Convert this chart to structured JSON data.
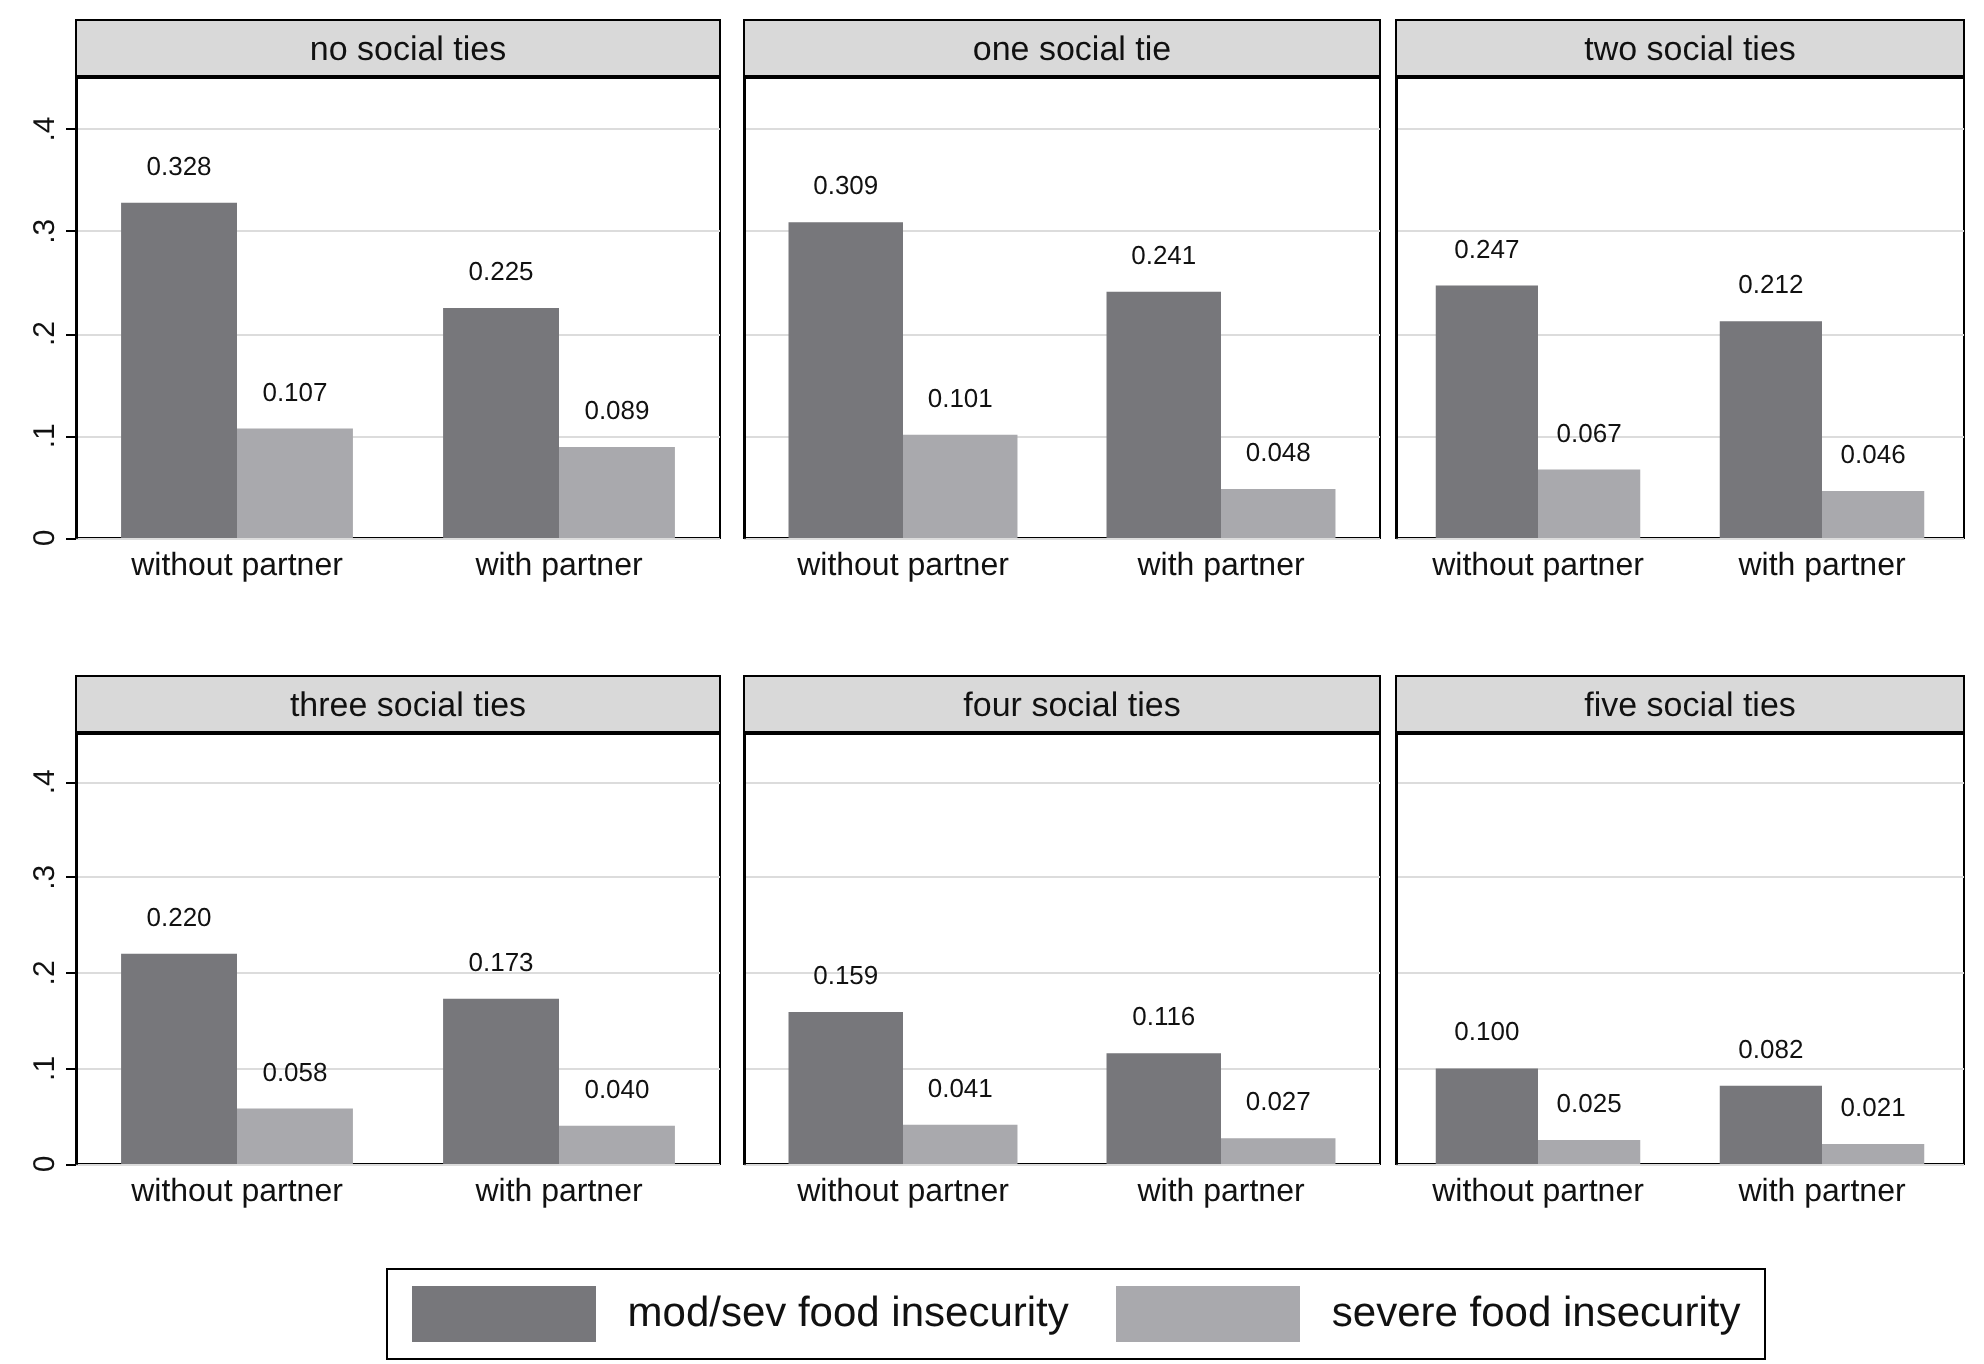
{
  "chart_data": [
    {
      "type": "bar",
      "title": "no social ties",
      "categories": [
        "without partner",
        "with partner"
      ],
      "ylim": [
        0,
        0.45
      ],
      "yticks": [
        0,
        {
          "value": 0.1,
          "label": ".1"
        },
        {
          "value": 0.2,
          "label": ".2"
        },
        {
          "value": 0.3,
          "label": ".3"
        },
        {
          "value": 0.4,
          "label": ".4"
        }
      ],
      "grid": "y",
      "legend": "bottom",
      "series": [
        {
          "name": "mod/sev food insecurity",
          "color": "#77777b",
          "values": [
            0.328,
            0.225
          ],
          "value_labels": [
            "0.328",
            "0.225"
          ]
        },
        {
          "name": "severe food insecurity",
          "color": "#a9a9ad",
          "values": [
            0.107,
            0.089
          ],
          "value_labels": [
            "0.107",
            "0.089"
          ]
        }
      ]
    },
    {
      "type": "bar",
      "title": "one social tie",
      "categories": [
        "without partner",
        "with partner"
      ],
      "ylim": [
        0,
        0.45
      ],
      "yticks": [
        0,
        0.1,
        0.2,
        0.3,
        0.4
      ],
      "grid": "y",
      "tick_labels": "x",
      "series": [
        {
          "color": "#77777b",
          "values": [
            0.309,
            0.241
          ],
          "value_labels": [
            "0.309",
            "0.241"
          ]
        },
        {
          "color": "#a9a9ad",
          "values": [
            0.101,
            0.048
          ],
          "value_labels": [
            "0.101",
            "0.048"
          ]
        }
      ]
    },
    {
      "type": "bar",
      "title": "two social ties",
      "categories": [
        "without partner",
        "with partner"
      ],
      "ylim": [
        0,
        0.45
      ],
      "yticks": [
        0,
        0.1,
        0.2,
        0.3,
        0.4
      ],
      "grid": "y",
      "tick_labels": "x",
      "series": [
        {
          "color": "#77777b",
          "values": [
            0.247,
            0.212
          ],
          "value_labels": [
            "0.247",
            "0.212"
          ]
        },
        {
          "color": "#a9a9ad",
          "values": [
            0.067,
            0.046
          ],
          "value_labels": [
            "0.067",
            "0.046"
          ]
        }
      ]
    },
    {
      "type": "bar",
      "title": "three social ties",
      "categories": [
        "without partner",
        "with partner"
      ],
      "ylim": [
        0,
        0.45
      ],
      "yticks": [
        0,
        {
          "value": 0.1,
          "label": ".1"
        },
        {
          "value": 0.2,
          "label": ".2"
        },
        {
          "value": 0.3,
          "label": ".3"
        },
        {
          "value": 0.4,
          "label": ".4"
        }
      ],
      "grid": "y",
      "series": [
        {
          "color": "#77777b",
          "values": [
            0.22,
            0.173
          ],
          "value_labels": [
            "0.220",
            "0.173"
          ]
        },
        {
          "color": "#a9a9ad",
          "values": [
            0.058,
            0.04
          ],
          "value_labels": [
            "0.058",
            "0.040"
          ]
        }
      ]
    },
    {
      "type": "bar",
      "title": "four social ties",
      "categories": [
        "without partner",
        "with partner"
      ],
      "ylim": [
        0,
        0.45
      ],
      "yticks": [
        0,
        0.1,
        0.2,
        0.3,
        0.4
      ],
      "grid": "y",
      "tick_labels": "x",
      "series": [
        {
          "color": "#77777b",
          "values": [
            0.159,
            0.116
          ],
          "value_labels": [
            "0.159",
            "0.116"
          ]
        },
        {
          "color": "#a9a9ad",
          "values": [
            0.041,
            0.027
          ],
          "value_labels": [
            "0.041",
            "0.027"
          ]
        }
      ]
    },
    {
      "type": "bar",
      "title": "five social ties",
      "categories": [
        "without partner",
        "with partner"
      ],
      "ylim": [
        0,
        0.45
      ],
      "yticks": [
        0,
        0.1,
        0.2,
        0.3,
        0.4
      ],
      "grid": "y",
      "tick_labels": "x",
      "series": [
        {
          "color": "#77777b",
          "values": [
            0.1,
            0.082
          ],
          "value_labels": [
            "0.100",
            "0.082"
          ]
        },
        {
          "color": "#a9a9ad",
          "values": [
            0.025,
            0.021
          ],
          "value_labels": [
            "0.025",
            "0.021"
          ]
        }
      ]
    }
  ]
}
